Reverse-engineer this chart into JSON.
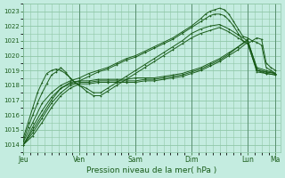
{
  "xlabel": "Pression niveau de la mer( hPa )",
  "bg_color": "#c4ece0",
  "plot_bg_color": "#c4ece0",
  "grid_color": "#90c8a8",
  "line_color": "#1a5c1a",
  "ylim": [
    1013.5,
    1023.5
  ],
  "yticks": [
    1014,
    1015,
    1016,
    1017,
    1018,
    1019,
    1020,
    1021,
    1022,
    1023
  ],
  "day_positions": [
    0,
    48,
    96,
    144,
    192,
    216
  ],
  "day_labels": [
    "Jeu",
    "Ven",
    "Sam",
    "Dim",
    "Lun",
    "Ma"
  ],
  "xlim": [
    0,
    220
  ],
  "series": [
    {
      "x": [
        0,
        8,
        16,
        24,
        32,
        40,
        48,
        56,
        64,
        72,
        80,
        88,
        96,
        104,
        112,
        120,
        128,
        136,
        144,
        152,
        156,
        160,
        164,
        168,
        172,
        176,
        180,
        184,
        188,
        192,
        196,
        200,
        204,
        208,
        212,
        216
      ],
      "y": [
        1014.2,
        1015.5,
        1016.8,
        1017.5,
        1018.0,
        1018.3,
        1018.5,
        1018.8,
        1019.0,
        1019.2,
        1019.5,
        1019.8,
        1020.0,
        1020.3,
        1020.6,
        1020.9,
        1021.2,
        1021.6,
        1022.0,
        1022.5,
        1022.8,
        1023.0,
        1023.1,
        1023.2,
        1023.1,
        1022.8,
        1022.3,
        1021.8,
        1021.3,
        1021.2,
        1021.0,
        1021.2,
        1021.1,
        1019.5,
        1019.2,
        1019.0
      ]
    },
    {
      "x": [
        0,
        8,
        16,
        24,
        32,
        40,
        48,
        56,
        64,
        72,
        80,
        88,
        96,
        104,
        112,
        120,
        128,
        136,
        144,
        152,
        156,
        160,
        164,
        168,
        172,
        176,
        180,
        184,
        188,
        192,
        196,
        200,
        204,
        208,
        212,
        216
      ],
      "y": [
        1014.0,
        1015.2,
        1016.3,
        1017.2,
        1017.8,
        1018.1,
        1018.3,
        1018.6,
        1018.9,
        1019.1,
        1019.4,
        1019.7,
        1019.9,
        1020.2,
        1020.5,
        1020.8,
        1021.1,
        1021.5,
        1021.9,
        1022.3,
        1022.5,
        1022.7,
        1022.8,
        1022.8,
        1022.7,
        1022.4,
        1022.0,
        1021.5,
        1021.0,
        1020.8,
        1021.0,
        1020.9,
        1020.7,
        1019.2,
        1019.0,
        1018.8
      ]
    },
    {
      "x": [
        0,
        8,
        16,
        24,
        32,
        40,
        48,
        56,
        64,
        72,
        80,
        88,
        96,
        104,
        112,
        120,
        128,
        136,
        144,
        152,
        160,
        168,
        176,
        184,
        192,
        200,
        208,
        216
      ],
      "y": [
        1014.0,
        1015.0,
        1016.0,
        1017.0,
        1017.8,
        1018.2,
        1018.3,
        1018.3,
        1018.4,
        1018.4,
        1018.4,
        1018.4,
        1018.5,
        1018.5,
        1018.5,
        1018.6,
        1018.7,
        1018.8,
        1019.0,
        1019.2,
        1019.5,
        1019.8,
        1020.2,
        1020.6,
        1021.0,
        1019.0,
        1018.8,
        1018.7
      ]
    },
    {
      "x": [
        0,
        8,
        16,
        24,
        32,
        40,
        48,
        56,
        64,
        72,
        80,
        88,
        96,
        104,
        112,
        120,
        128,
        136,
        144,
        152,
        160,
        168,
        176,
        184,
        192,
        200,
        208,
        216
      ],
      "y": [
        1014.0,
        1014.8,
        1015.8,
        1016.8,
        1017.5,
        1018.0,
        1018.2,
        1018.2,
        1018.3,
        1018.3,
        1018.3,
        1018.3,
        1018.3,
        1018.4,
        1018.4,
        1018.5,
        1018.6,
        1018.7,
        1018.9,
        1019.1,
        1019.4,
        1019.7,
        1020.1,
        1020.6,
        1021.1,
        1019.1,
        1018.9,
        1018.8
      ]
    },
    {
      "x": [
        0,
        8,
        16,
        24,
        32,
        40,
        48,
        56,
        64,
        72,
        80,
        88,
        96,
        104,
        112,
        120,
        128,
        136,
        144,
        152,
        160,
        168,
        176,
        184,
        192,
        200,
        208,
        216
      ],
      "y": [
        1014.0,
        1014.6,
        1015.5,
        1016.5,
        1017.3,
        1017.8,
        1018.1,
        1018.1,
        1018.2,
        1018.2,
        1018.2,
        1018.2,
        1018.2,
        1018.3,
        1018.3,
        1018.4,
        1018.5,
        1018.6,
        1018.8,
        1019.0,
        1019.3,
        1019.6,
        1020.0,
        1020.4,
        1020.9,
        1018.9,
        1018.8,
        1018.7
      ]
    },
    {
      "x": [
        0,
        4,
        8,
        12,
        16,
        20,
        24,
        28,
        32,
        36,
        40,
        44,
        48,
        54,
        60,
        66,
        72,
        80,
        88,
        96,
        104,
        112,
        120,
        128,
        136,
        144,
        152,
        160,
        168,
        176,
        184,
        192,
        200,
        208,
        216
      ],
      "y": [
        1014.5,
        1015.5,
        1016.5,
        1017.5,
        1018.2,
        1018.8,
        1019.0,
        1019.1,
        1019.0,
        1018.8,
        1018.5,
        1018.2,
        1018.0,
        1017.8,
        1017.5,
        1017.5,
        1017.8,
        1018.2,
        1018.6,
        1019.0,
        1019.4,
        1019.8,
        1020.2,
        1020.6,
        1021.0,
        1021.5,
        1021.8,
        1022.0,
        1022.1,
        1021.8,
        1021.4,
        1021.0,
        1019.2,
        1019.0,
        1018.8
      ]
    },
    {
      "x": [
        0,
        4,
        8,
        12,
        16,
        20,
        24,
        28,
        32,
        36,
        40,
        44,
        48,
        54,
        60,
        66,
        72,
        80,
        88,
        96,
        104,
        112,
        120,
        128,
        136,
        144,
        152,
        160,
        168,
        176,
        184,
        192,
        200,
        208,
        216
      ],
      "y": [
        1014.3,
        1015.2,
        1016.0,
        1016.8,
        1017.5,
        1018.1,
        1018.7,
        1018.9,
        1019.2,
        1018.9,
        1018.5,
        1018.2,
        1018.0,
        1017.6,
        1017.3,
        1017.3,
        1017.6,
        1018.0,
        1018.4,
        1018.8,
        1019.2,
        1019.6,
        1020.0,
        1020.4,
        1020.8,
        1021.2,
        1021.5,
        1021.7,
        1021.9,
        1021.6,
        1021.2,
        1020.8,
        1019.0,
        1018.9,
        1018.8
      ]
    }
  ]
}
